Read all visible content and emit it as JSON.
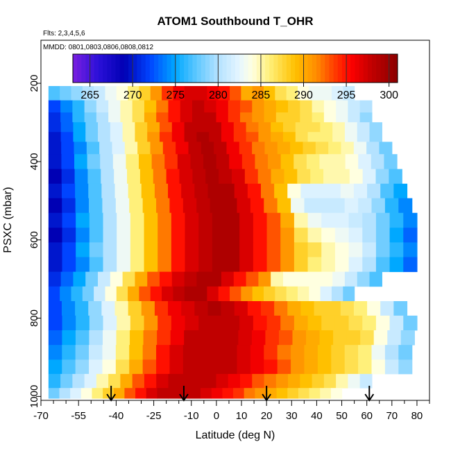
{
  "chart_data": {
    "type": "heatmap",
    "title": "ATOM1 Southbound T_OHR",
    "notes": [
      "Flts: 2,3,4,5,6",
      "MMDD: 0801,0803,0806,0808,0812"
    ],
    "xlabel": "Latitude (deg N)",
    "ylabel": "PSXC (mbar)",
    "xlim": [
      -70,
      85
    ],
    "ylim": [
      1010,
      90
    ],
    "x_ticks": [
      -70,
      -55,
      -40,
      -25,
      -10,
      0,
      10,
      20,
      30,
      40,
      50,
      60,
      70,
      80
    ],
    "x_tick_labels": [
      "-70",
      "-55",
      "-40",
      "-25",
      "-10",
      "0",
      "10",
      "20",
      "30",
      "40",
      "50",
      "60",
      "70",
      "80"
    ],
    "x_minor_ticks": [
      -65,
      -60,
      -50,
      -45,
      -35,
      -30,
      -20,
      -15,
      -5,
      5,
      15,
      25,
      35,
      45,
      55,
      65,
      75,
      85
    ],
    "y_ticks": [
      200,
      400,
      600,
      800,
      1000
    ],
    "y_tick_labels": [
      "200",
      "400",
      "600",
      "800",
      "1000"
    ],
    "colorbar": {
      "ticks": [
        265,
        270,
        275,
        280,
        285,
        290,
        295,
        300
      ],
      "tick_labels": [
        "265",
        "270",
        "275",
        "280",
        "285",
        "290",
        "295",
        "300"
      ],
      "range": [
        263,
        301
      ],
      "stops": [
        {
          "value": 263,
          "color": "#7a1fe0"
        },
        {
          "value": 266,
          "color": "#2a10d8"
        },
        {
          "value": 269,
          "color": "#0000b4"
        },
        {
          "value": 272,
          "color": "#0044ff"
        },
        {
          "value": 275,
          "color": "#00a8ff"
        },
        {
          "value": 277.5,
          "color": "#60c8ff"
        },
        {
          "value": 280,
          "color": "#b4e2ff"
        },
        {
          "value": 282.5,
          "color": "#e6f6ff"
        },
        {
          "value": 284,
          "color": "#ffffe0"
        },
        {
          "value": 286,
          "color": "#fff07a"
        },
        {
          "value": 289,
          "color": "#ffc000"
        },
        {
          "value": 291.5,
          "color": "#ff8c00"
        },
        {
          "value": 293.5,
          "color": "#ff4000"
        },
        {
          "value": 295.5,
          "color": "#ff0000"
        },
        {
          "value": 298,
          "color": "#c00000"
        },
        {
          "value": 301,
          "color": "#8a0000"
        }
      ]
    },
    "pressure_levels": [
      225,
      262,
      287,
      312,
      337,
      362,
      400,
      438,
      475,
      512,
      550,
      588,
      625,
      663,
      700,
      738,
      775,
      812,
      850,
      887,
      925,
      960,
      997
    ],
    "levels": [
      {
        "lat_min": -67,
        "lat_max": 55,
        "values": [
          277,
          278,
          279,
          280,
          281,
          283,
          284,
          286,
          288,
          291,
          294,
          296,
          297,
          297,
          296,
          295,
          293,
          290,
          291,
          289,
          287,
          286,
          284,
          283,
          283,
          282,
          281
        ]
      },
      {
        "lat_min": -67,
        "lat_max": 62,
        "values": [
          272,
          274,
          276,
          279,
          281,
          283,
          285,
          287,
          289,
          292,
          295,
          297,
          298,
          297,
          296,
          294,
          293,
          291,
          290,
          289,
          288,
          287,
          285,
          284,
          283,
          281,
          280
        ]
      },
      {
        "lat_min": -67,
        "lat_max": 62,
        "values": [
          271,
          273,
          276,
          278,
          280,
          283,
          285,
          287,
          290,
          293,
          295,
          297,
          298,
          298,
          296,
          294,
          292,
          291,
          290,
          288,
          288,
          287,
          286,
          284,
          283,
          281,
          279
        ]
      },
      {
        "lat_min": -67,
        "lat_max": 66,
        "values": [
          271,
          273,
          275,
          278,
          280,
          282,
          285,
          288,
          290,
          293,
          296,
          298,
          298,
          298,
          296,
          294,
          292,
          291,
          289,
          288,
          287,
          287,
          286,
          285,
          283,
          281,
          279
        ]
      },
      {
        "lat_min": -67,
        "lat_max": 66,
        "values": [
          270,
          272,
          275,
          278,
          280,
          282,
          285,
          288,
          291,
          294,
          296,
          298,
          299,
          298,
          296,
          294,
          293,
          291,
          290,
          289,
          287,
          286,
          286,
          285,
          283,
          281,
          279
        ]
      },
      {
        "lat_min": -67,
        "lat_max": 70,
        "values": [
          270,
          272,
          274,
          277,
          280,
          282,
          285,
          288,
          291,
          294,
          296,
          298,
          299,
          298,
          296,
          294,
          292,
          291,
          290,
          289,
          288,
          287,
          286,
          285,
          283,
          280,
          278
        ]
      },
      {
        "lat_min": -67,
        "lat_max": 72,
        "values": [
          270,
          272,
          275,
          278,
          280,
          283,
          286,
          289,
          292,
          294,
          297,
          298,
          299,
          298,
          296,
          294,
          292,
          291,
          289,
          287,
          286,
          285,
          285,
          284,
          282,
          280,
          278
        ]
      },
      {
        "lat_min": -67,
        "lat_max": 74,
        "values": [
          269,
          271,
          274,
          277,
          280,
          283,
          286,
          289,
          292,
          295,
          297,
          298,
          299,
          298,
          297,
          294,
          292,
          290,
          289,
          287,
          286,
          285,
          285,
          284,
          282,
          279,
          277
        ]
      },
      {
        "lat_min": -67,
        "lat_max": 76,
        "values": [
          270,
          272,
          274,
          277,
          280,
          283,
          286,
          289,
          292,
          295,
          297,
          298,
          299,
          299,
          297,
          295,
          292,
          289,
          284,
          282,
          282,
          282,
          283,
          282,
          280,
          277,
          275
        ]
      },
      {
        "lat_min": -67,
        "lat_max": 78,
        "values": [
          269,
          271,
          274,
          277,
          280,
          283,
          286,
          289,
          292,
          295,
          297,
          298,
          299,
          299,
          297,
          295,
          292,
          289,
          283,
          281,
          281,
          281,
          282,
          281,
          279,
          276,
          274
        ]
      },
      {
        "lat_min": -67,
        "lat_max": 80,
        "values": [
          270,
          272,
          275,
          277,
          280,
          283,
          286,
          289,
          292,
          295,
          297,
          298,
          299,
          299,
          297,
          295,
          293,
          290,
          285,
          283,
          282,
          282,
          281,
          280,
          278,
          276,
          274
        ]
      },
      {
        "lat_min": -67,
        "lat_max": 80,
        "values": [
          269,
          271,
          274,
          277,
          280,
          283,
          286,
          289,
          292,
          295,
          297,
          298,
          299,
          299,
          297,
          295,
          293,
          291,
          287,
          285,
          284,
          283,
          282,
          280,
          278,
          275,
          273
        ]
      },
      {
        "lat_min": -67,
        "lat_max": 80,
        "values": [
          270,
          272,
          275,
          278,
          280,
          283,
          286,
          289,
          292,
          295,
          297,
          298,
          299,
          299,
          297,
          295,
          293,
          291,
          288,
          287,
          285,
          284,
          283,
          281,
          278,
          276,
          274
        ]
      },
      {
        "lat_min": -67,
        "lat_max": 80,
        "values": [
          270,
          272,
          274,
          277,
          280,
          283,
          286,
          289,
          292,
          295,
          297,
          298,
          299,
          299,
          297,
          295,
          293,
          291,
          288,
          286,
          285,
          284,
          282,
          280,
          277,
          275,
          273
        ]
      },
      {
        "lat_min": -67,
        "lat_max": 66,
        "values": [
          271,
          273,
          275,
          278,
          281,
          284,
          287,
          290,
          293,
          295,
          297,
          298,
          299,
          299,
          297,
          295,
          293,
          291,
          285,
          284,
          284,
          284,
          284,
          283,
          281,
          279,
          277
        ]
      },
      {
        "lat_min": -67,
        "lat_max": 55,
        "values": [
          272,
          274,
          276,
          278,
          281,
          284,
          287,
          290,
          293,
          295,
          297,
          298,
          299,
          299,
          297,
          295,
          293,
          291,
          289,
          288,
          287,
          286,
          285,
          284,
          282,
          280,
          278
        ]
      },
      {
        "lat_min": -67,
        "lat_max": 76,
        "values": [
          272,
          274,
          276,
          279,
          282,
          285,
          288,
          291,
          294,
          296,
          297,
          298,
          299,
          298,
          297,
          295,
          294,
          292,
          290,
          289,
          288,
          288,
          287,
          286,
          284,
          281,
          278
        ]
      },
      {
        "lat_min": -67,
        "lat_max": 80,
        "values": [
          272,
          274,
          276,
          279,
          282,
          285,
          288,
          291,
          294,
          296,
          297,
          298,
          298,
          298,
          297,
          295,
          294,
          292,
          290,
          289,
          288,
          288,
          287,
          286,
          284,
          281,
          278
        ]
      },
      {
        "lat_min": -67,
        "lat_max": 79,
        "values": [
          273,
          275,
          277,
          280,
          283,
          286,
          289,
          292,
          294,
          296,
          298,
          298,
          298,
          298,
          297,
          296,
          294,
          293,
          291,
          290,
          289,
          288,
          288,
          287,
          284,
          281,
          279
        ]
      },
      {
        "lat_min": -67,
        "lat_max": 78,
        "values": [
          274,
          276,
          278,
          281,
          283,
          286,
          289,
          292,
          295,
          297,
          298,
          298,
          298,
          298,
          297,
          296,
          294,
          292,
          291,
          290,
          289,
          288,
          287,
          286,
          283,
          280,
          278
        ]
      },
      {
        "lat_min": -67,
        "lat_max": 78,
        "values": [
          275,
          277,
          279,
          282,
          284,
          287,
          290,
          293,
          295,
          297,
          298,
          298,
          298,
          298,
          297,
          296,
          295,
          293,
          291,
          290,
          289,
          288,
          287,
          286,
          284,
          281,
          279
        ]
      },
      {
        "lat_min": -67,
        "lat_max": 62,
        "values": [
          276,
          278,
          280,
          282,
          285,
          287,
          290,
          293,
          295,
          297,
          298,
          298,
          298,
          298,
          297,
          296,
          295,
          293,
          292,
          291,
          290,
          289,
          288,
          287,
          285,
          283,
          281
        ]
      },
      {
        "lat_min": -67,
        "lat_max": 50,
        "values": [
          278,
          280,
          282,
          284,
          286,
          288,
          290,
          293,
          295,
          297,
          298,
          298,
          298,
          298,
          297,
          296,
          295,
          294,
          292,
          291,
          290,
          289,
          288,
          287,
          286,
          285,
          284
        ]
      }
    ],
    "flight_profile_markers_lat": [
      -42,
      -13,
      20,
      61
    ]
  }
}
